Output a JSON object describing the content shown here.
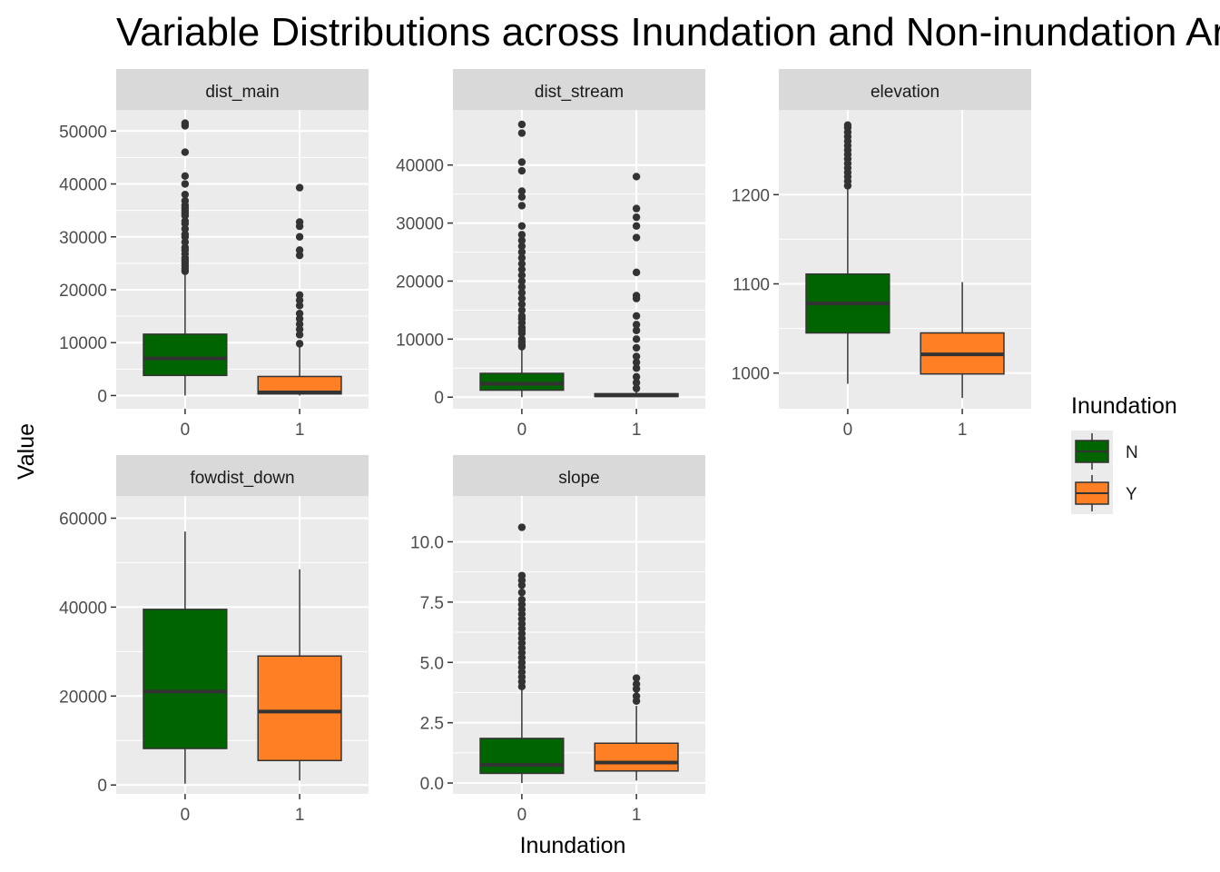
{
  "chart_data": {
    "type": "boxplot",
    "title": "Variable Distributions across Inundation and Non-inundation Areas",
    "xlabel": "Inundation",
    "ylabel": "Value",
    "categories": [
      "0",
      "1"
    ],
    "legend": {
      "title": "Inundation",
      "position": "right",
      "items": [
        {
          "label": "N",
          "color": "#006400"
        },
        {
          "label": "Y",
          "color": "#FF7F24"
        }
      ]
    },
    "colors": {
      "N": "#006400",
      "Y": "#FF7F24",
      "panel_bg": "#EBEBEB",
      "strip_bg": "#D9D9D9",
      "grid": "#FFFFFF",
      "line": "#333333"
    },
    "grid": true,
    "facets": [
      {
        "name": "dist_main",
        "ylim": [
          -2500,
          54000
        ],
        "ticks": [
          0,
          10000,
          20000,
          30000,
          40000,
          50000
        ],
        "tick_labels": [
          "0",
          "10000",
          "20000",
          "30000",
          "40000",
          "50000"
        ],
        "boxes": [
          {
            "category": "0",
            "legend": "N",
            "lower_whisker": 0,
            "q1": 3800,
            "median": 7000,
            "q3": 11600,
            "upper_whisker": 23200,
            "outliers": [
              23500,
              24000,
              24500,
              25000,
              25500,
              26000,
              26800,
              27500,
              28000,
              29000,
              30000,
              30500,
              31500,
              32500,
              33000,
              34000,
              34500,
              35000,
              35500,
              36000,
              36800,
              38000,
              40000,
              41500,
              46000,
              51000,
              51500
            ]
          },
          {
            "category": "1",
            "legend": "Y",
            "lower_whisker": 0,
            "q1": 300,
            "median": 600,
            "q3": 3600,
            "upper_whisker": 9500,
            "outliers": [
              9800,
              11500,
              12500,
              13500,
              14500,
              15500,
              17000,
              18000,
              19000,
              26500,
              27500,
              30000,
              32000,
              32800,
              39300
            ]
          }
        ]
      },
      {
        "name": "dist_stream",
        "ylim": [
          -2000,
          49500
        ],
        "ticks": [
          0,
          10000,
          20000,
          30000,
          40000
        ],
        "tick_labels": [
          "0",
          "10000",
          "20000",
          "30000",
          "40000"
        ],
        "boxes": [
          {
            "category": "0",
            "legend": "N",
            "lower_whisker": 0,
            "q1": 1200,
            "median": 2300,
            "q3": 4100,
            "upper_whisker": 8500,
            "outliers": [
              8700,
              9000,
              9500,
              10000,
              11000,
              11500,
              12000,
              12800,
              13500,
              14000,
              15000,
              16000,
              17000,
              18000,
              19000,
              20000,
              21000,
              22000,
              23000,
              24000,
              25000,
              26000,
              27000,
              28000,
              29500,
              33000,
              34500,
              35500,
              39000,
              40500,
              45500,
              47000
            ]
          },
          {
            "category": "1",
            "legend": "Y",
            "lower_whisker": 0,
            "q1": 100,
            "median": 300,
            "q3": 600,
            "upper_whisker": 1200,
            "outliers": [
              1500,
              2500,
              3500,
              5000,
              6000,
              7000,
              8500,
              10000,
              11500,
              12500,
              14000,
              17000,
              17500,
              21500,
              27500,
              29500,
              31000,
              32500,
              38000
            ]
          }
        ]
      },
      {
        "name": "elevation",
        "ylim": [
          960,
          1295
        ],
        "ticks": [
          1000,
          1100,
          1200
        ],
        "tick_labels": [
          "1000",
          "1100",
          "1200"
        ],
        "boxes": [
          {
            "category": "0",
            "legend": "N",
            "lower_whisker": 988,
            "q1": 1045,
            "median": 1078,
            "q3": 1111,
            "upper_whisker": 1208,
            "outliers": [
              1210,
              1215,
              1220,
              1225,
              1230,
              1235,
              1240,
              1245,
              1250,
              1255,
              1260,
              1265,
              1270,
              1275,
              1278
            ]
          },
          {
            "category": "1",
            "legend": "Y",
            "lower_whisker": 972,
            "q1": 999,
            "median": 1021,
            "q3": 1045,
            "upper_whisker": 1102,
            "outliers": []
          }
        ]
      },
      {
        "name": "fowdist_down",
        "ylim": [
          -2000,
          65000
        ],
        "ticks": [
          0,
          20000,
          40000,
          60000
        ],
        "tick_labels": [
          "0",
          "20000",
          "40000",
          "60000"
        ],
        "boxes": [
          {
            "category": "0",
            "legend": "N",
            "lower_whisker": 300,
            "q1": 8200,
            "median": 21000,
            "q3": 39500,
            "upper_whisker": 57000,
            "outliers": []
          },
          {
            "category": "1",
            "legend": "Y",
            "lower_whisker": 1000,
            "q1": 5500,
            "median": 16500,
            "q3": 29000,
            "upper_whisker": 48500,
            "outliers": []
          }
        ]
      },
      {
        "name": "slope",
        "ylim": [
          -0.45,
          11.9
        ],
        "ticks": [
          0,
          2.5,
          5,
          7.5,
          10
        ],
        "tick_labels": [
          "0.0",
          "2.5",
          "5.0",
          "7.5",
          "10.0"
        ],
        "boxes": [
          {
            "category": "0",
            "legend": "N",
            "lower_whisker": 0,
            "q1": 0.4,
            "median": 0.75,
            "q3": 1.85,
            "upper_whisker": 3.9,
            "outliers": [
              4.0,
              4.2,
              4.4,
              4.6,
              4.8,
              5.0,
              5.2,
              5.4,
              5.6,
              5.8,
              6.0,
              6.2,
              6.4,
              6.6,
              6.8,
              7.0,
              7.2,
              7.4,
              7.6,
              7.9,
              8.2,
              8.4,
              8.6,
              10.6
            ]
          },
          {
            "category": "1",
            "legend": "Y",
            "lower_whisker": 0.1,
            "q1": 0.5,
            "median": 0.85,
            "q3": 1.65,
            "upper_whisker": 3.2,
            "outliers": [
              3.4,
              3.6,
              3.9,
              4.1,
              4.35
            ]
          }
        ]
      }
    ]
  }
}
